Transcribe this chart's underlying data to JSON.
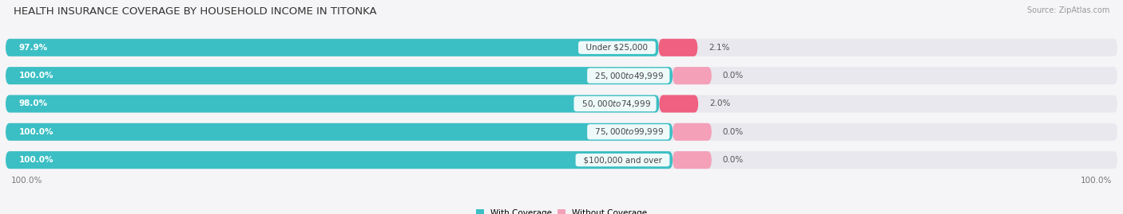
{
  "title": "HEALTH INSURANCE COVERAGE BY HOUSEHOLD INCOME IN TITONKA",
  "source": "Source: ZipAtlas.com",
  "categories": [
    "Under $25,000",
    "$25,000 to $49,999",
    "$50,000 to $74,999",
    "$75,000 to $99,999",
    "$100,000 and over"
  ],
  "with_coverage": [
    97.9,
    100.0,
    98.0,
    100.0,
    100.0
  ],
  "without_coverage": [
    2.1,
    0.0,
    2.0,
    0.0,
    0.0
  ],
  "with_coverage_color": "#3bbfc4",
  "without_coverage_color_high": "#f06080",
  "without_coverage_color_low": "#f4a0b8",
  "bar_bg_color": "#e8e8ee",
  "fig_bg_color": "#f5f5f7",
  "bar_scale": 60.0,
  "total_width": 100.0,
  "bar_height": 0.62,
  "bar_gap": 0.18,
  "legend_with": "With Coverage",
  "legend_without": "Without Coverage",
  "title_fontsize": 9.5,
  "label_fontsize": 7.5,
  "source_fontsize": 7.0,
  "tick_fontsize": 7.5,
  "bottom_label": "100.0%"
}
